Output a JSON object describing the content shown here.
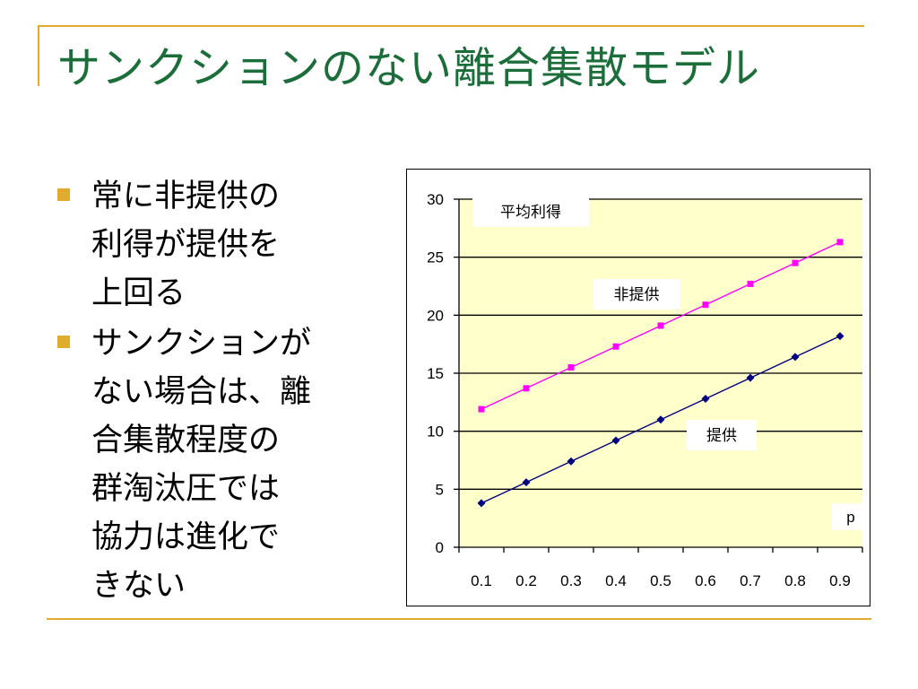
{
  "slide": {
    "title": "サンクションのない離合集散モデル",
    "accent_color": "#e0ac2e",
    "title_color": "#1b6e3a",
    "bullets": [
      {
        "text": "常に非提供の\n利得が提供を\n上回る"
      },
      {
        "text": "サンクションが\nない場合は、離\n合集散程度の\n群淘汰圧では\n協力は進化で\nきない"
      }
    ]
  },
  "chart_data": {
    "type": "line",
    "title": "",
    "ylabel": "平均利得",
    "xlabel": "p",
    "categories": [
      "0.1",
      "0.2",
      "0.3",
      "0.4",
      "0.5",
      "0.6",
      "0.7",
      "0.8",
      "0.9"
    ],
    "ylim": [
      0,
      30
    ],
    "yticks": [
      0,
      5,
      10,
      15,
      20,
      25,
      30
    ],
    "grid": true,
    "plot_background": "#ffffcc",
    "series": [
      {
        "name": "非提供",
        "color": "#ff00ff",
        "marker": "square",
        "values": [
          11.9,
          13.7,
          15.5,
          17.3,
          19.1,
          20.9,
          22.7,
          24.5,
          26.3
        ]
      },
      {
        "name": "提供",
        "color": "#000080",
        "marker": "diamond",
        "values": [
          3.8,
          5.6,
          7.4,
          9.2,
          11.0,
          12.8,
          14.6,
          16.4,
          18.2
        ]
      }
    ]
  }
}
